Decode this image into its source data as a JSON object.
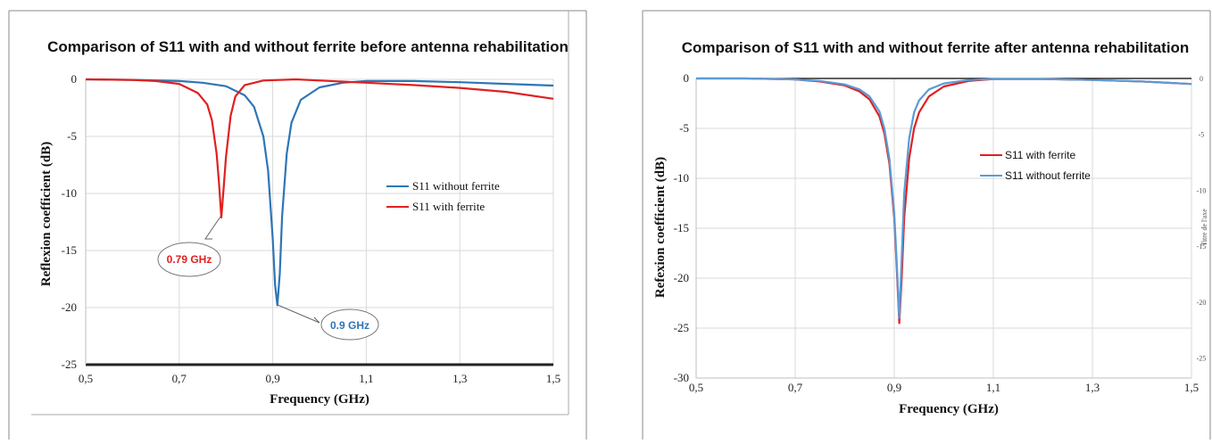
{
  "chart_data": [
    {
      "type": "line",
      "title": "Comparison of S11 with and without ferrite before antenna rehabilitation",
      "xlabel": "Frequency (GHz)",
      "ylabel": "Reflexion coefficient (dB)",
      "xlim": [
        0.5,
        1.5
      ],
      "ylim": [
        -25,
        0
      ],
      "x_ticks": [
        0.5,
        0.7,
        0.9,
        1.1,
        1.3,
        1.5
      ],
      "x_tick_labels": [
        "0,5",
        "0,7",
        "0,9",
        "1,1",
        "1,3",
        "1,5"
      ],
      "y_ticks": [
        0,
        -5,
        -10,
        -15,
        -20,
        -25
      ],
      "y_tick_labels": [
        "0",
        "-5",
        "-10",
        "-15",
        "-20",
        "-25"
      ],
      "grid": true,
      "legend_position": "right",
      "series": [
        {
          "name": "S11 without ferrite",
          "color": "#2e75b6",
          "x": [
            0.5,
            0.6,
            0.7,
            0.75,
            0.8,
            0.84,
            0.86,
            0.88,
            0.89,
            0.9,
            0.905,
            0.91,
            0.915,
            0.92,
            0.93,
            0.94,
            0.96,
            1.0,
            1.05,
            1.1,
            1.2,
            1.3,
            1.4,
            1.5
          ],
          "y": [
            0,
            -0.05,
            -0.15,
            -0.3,
            -0.6,
            -1.4,
            -2.4,
            -5.0,
            -8.0,
            -14.0,
            -18.0,
            -19.8,
            -17.0,
            -12.0,
            -6.5,
            -3.8,
            -1.8,
            -0.7,
            -0.3,
            -0.15,
            -0.15,
            -0.25,
            -0.4,
            -0.55
          ]
        },
        {
          "name": "S11 with ferrite",
          "color": "#e02020",
          "x": [
            0.5,
            0.6,
            0.65,
            0.7,
            0.74,
            0.76,
            0.77,
            0.78,
            0.785,
            0.79,
            0.795,
            0.8,
            0.81,
            0.82,
            0.84,
            0.88,
            0.95,
            1.0,
            1.1,
            1.2,
            1.3,
            1.4,
            1.5
          ],
          "y": [
            0,
            -0.05,
            -0.15,
            -0.4,
            -1.2,
            -2.2,
            -3.6,
            -6.5,
            -9.0,
            -12.1,
            -9.5,
            -6.8,
            -3.2,
            -1.5,
            -0.5,
            -0.1,
            0,
            -0.1,
            -0.3,
            -0.5,
            -0.75,
            -1.1,
            -1.7
          ]
        }
      ],
      "annotations": [
        {
          "text": "0.79 GHz",
          "x": 0.79,
          "y": -12.1,
          "color": "#e02020"
        },
        {
          "text": "0.9 GHz",
          "x": 0.905,
          "y": -19.8,
          "color": "#2e75b6"
        }
      ]
    },
    {
      "type": "line",
      "title": "Comparison of S11 with and without ferrite after antenna rehabilitation",
      "xlabel": "Frequency (GHz)",
      "ylabel": "Refexion coefficient (dB)",
      "secondary_ylabel": "Titre de l'axe",
      "xlim": [
        0.5,
        1.5
      ],
      "ylim": [
        -30,
        0
      ],
      "x_ticks": [
        0.5,
        0.7,
        0.9,
        1.1,
        1.3,
        1.5
      ],
      "x_tick_labels": [
        "0,5",
        "0,7",
        "0,9",
        "1,1",
        "1,3",
        "1,5"
      ],
      "y_ticks": [
        0,
        -5,
        -10,
        -15,
        -20,
        -25,
        -30
      ],
      "y_tick_labels": [
        "0",
        "-5",
        "-10",
        "-15",
        "-20",
        "-25",
        "-30"
      ],
      "secondary_y_tick_labels": [
        "0",
        "-5",
        "-10",
        "-15",
        "-20",
        "-25"
      ],
      "grid": true,
      "legend_position": "right",
      "series": [
        {
          "name": "S11  with ferrite",
          "color": "#e02020",
          "x": [
            0.5,
            0.6,
            0.7,
            0.75,
            0.8,
            0.83,
            0.85,
            0.87,
            0.88,
            0.89,
            0.9,
            0.905,
            0.91,
            0.915,
            0.92,
            0.93,
            0.94,
            0.95,
            0.97,
            1.0,
            1.05,
            1.1,
            1.2,
            1.3,
            1.4,
            1.5
          ],
          "y": [
            0,
            0,
            -0.1,
            -0.3,
            -0.7,
            -1.3,
            -2.1,
            -3.8,
            -5.5,
            -8.5,
            -14.0,
            -19.0,
            -24.5,
            -20.0,
            -14.0,
            -8.0,
            -5.0,
            -3.4,
            -1.8,
            -0.8,
            -0.25,
            -0.05,
            -0.05,
            -0.15,
            -0.3,
            -0.55
          ]
        },
        {
          "name": "S11 without ferrite",
          "color": "#5b9bd5",
          "x": [
            0.5,
            0.6,
            0.7,
            0.75,
            0.8,
            0.83,
            0.85,
            0.87,
            0.88,
            0.89,
            0.9,
            0.905,
            0.91,
            0.915,
            0.92,
            0.93,
            0.94,
            0.95,
            0.97,
            1.0,
            1.05,
            1.1,
            1.2,
            1.3,
            1.4,
            1.5
          ],
          "y": [
            0,
            0,
            -0.1,
            -0.25,
            -0.6,
            -1.1,
            -1.8,
            -3.3,
            -5.0,
            -8.0,
            -13.5,
            -18.5,
            -24.0,
            -18.0,
            -11.5,
            -6.0,
            -3.4,
            -2.2,
            -1.1,
            -0.5,
            -0.15,
            -0.05,
            -0.05,
            -0.15,
            -0.3,
            -0.55
          ]
        }
      ]
    }
  ]
}
